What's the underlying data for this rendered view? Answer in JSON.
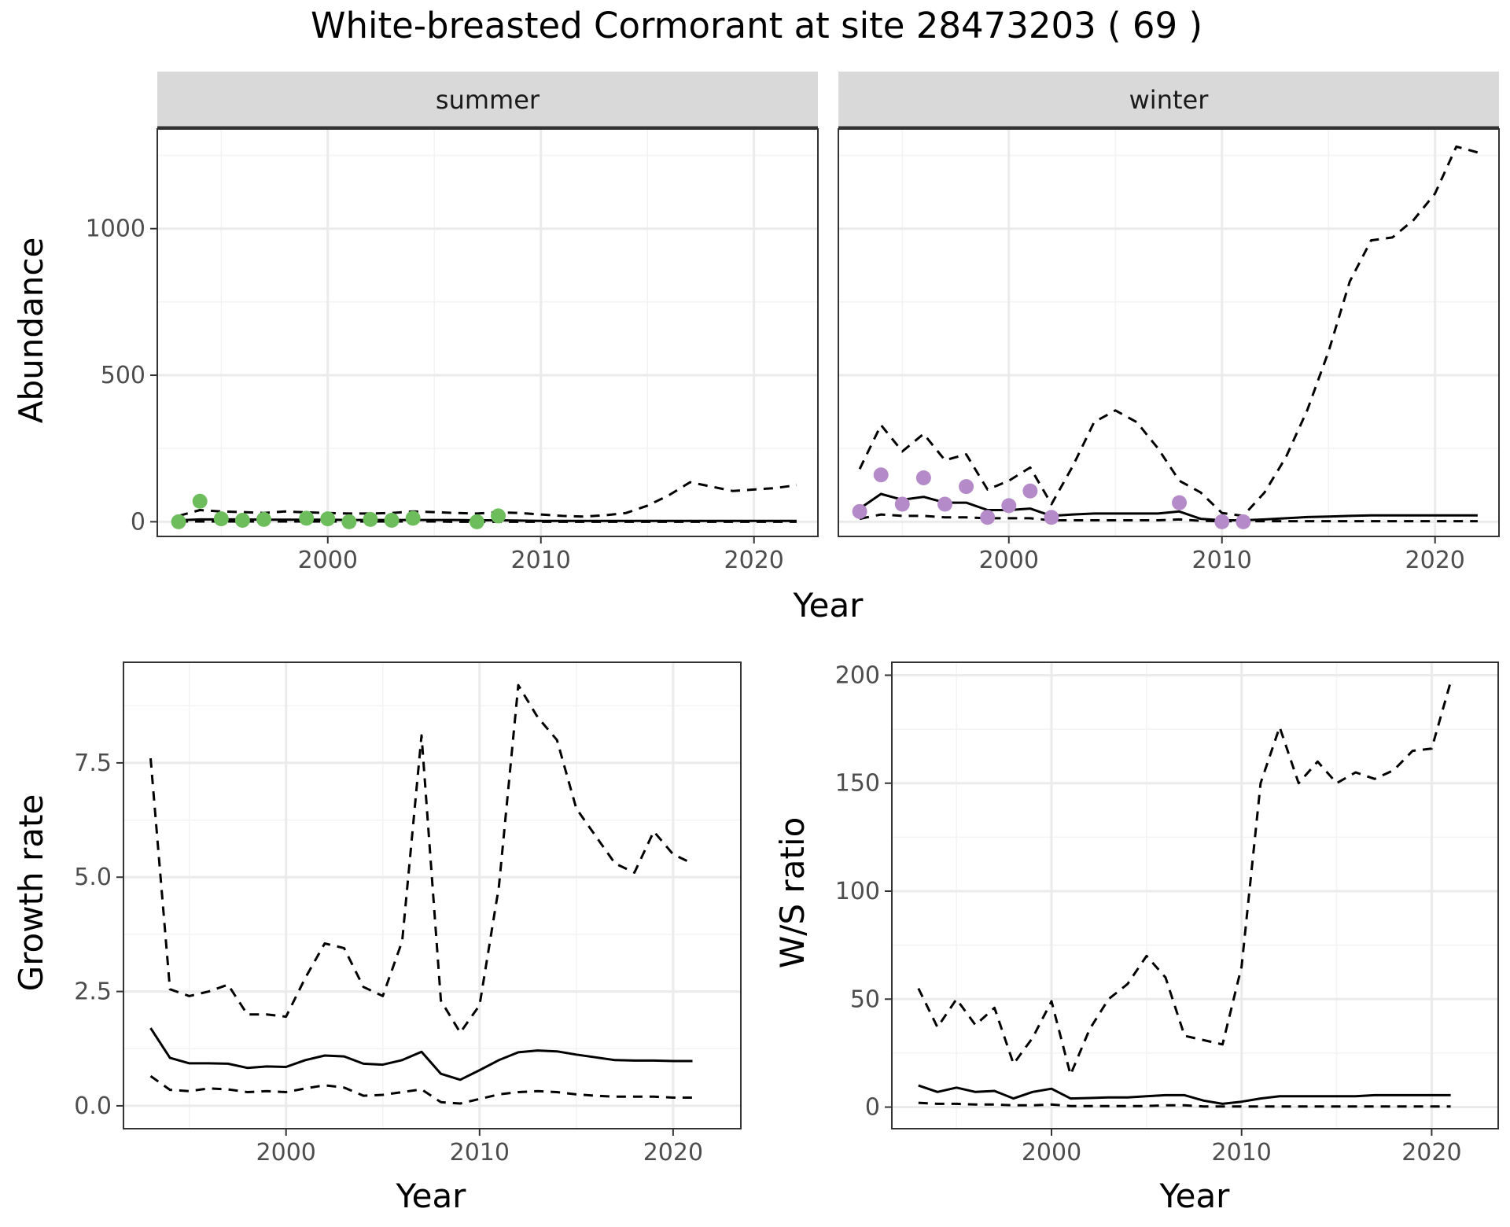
{
  "title": "White-breasted Cormorant at site 28473203 ( 69 )",
  "colors": {
    "summer_points": "#6dbd5c",
    "winter_points": "#b48bc8",
    "line": "#000000",
    "grid_major": "#ebebeb",
    "grid_minor": "#f3f3f3",
    "strip_bg": "#d9d9d9",
    "tick_text": "#4d4d4d"
  },
  "chart_data": [
    {
      "type": "line",
      "panel": "summer",
      "strip_label": "summer",
      "ylabel": "Abundance",
      "xlabel": "Year",
      "xlim": [
        1992,
        2023
      ],
      "ylim": [
        -50,
        1340
      ],
      "xticks": [
        2000,
        2010,
        2020
      ],
      "yticks": [
        0,
        500,
        1000
      ],
      "points": {
        "x": [
          1993,
          1994,
          1995,
          1996,
          1997,
          1999,
          2000,
          2001,
          2002,
          2003,
          2004,
          2007,
          2008
        ],
        "y": [
          0,
          70,
          10,
          5,
          8,
          12,
          10,
          0,
          8,
          5,
          12,
          0,
          20
        ],
        "color": "#6dbd5c"
      },
      "series": [
        {
          "style": "solid",
          "x": [
            1993,
            1994,
            1995,
            1996,
            1997,
            1998,
            1999,
            2000,
            2001,
            2002,
            2003,
            2004,
            2005,
            2006,
            2007,
            2008,
            2009,
            2010,
            2011,
            2012,
            2013,
            2014,
            2015,
            2016,
            2017,
            2018,
            2019,
            2020,
            2021,
            2022
          ],
          "y": [
            5,
            8,
            8,
            8,
            7,
            7,
            7,
            7,
            6,
            6,
            6,
            6,
            6,
            6,
            5,
            5,
            4,
            3,
            3,
            3,
            3,
            3,
            3,
            3,
            3,
            3,
            3,
            3,
            3,
            3
          ]
        },
        {
          "style": "dashed",
          "x": [
            1993,
            1994,
            1995,
            1996,
            1997,
            1998,
            1999,
            2000,
            2001,
            2002,
            2003,
            2004,
            2005,
            2006,
            2007,
            2008,
            2009,
            2010,
            2011,
            2012,
            2013,
            2014,
            2015,
            2016,
            2017,
            2018,
            2019,
            2020,
            2021,
            2022
          ],
          "y": [
            20,
            40,
            35,
            33,
            30,
            35,
            32,
            30,
            28,
            28,
            30,
            35,
            33,
            30,
            28,
            32,
            30,
            25,
            20,
            18,
            22,
            30,
            55,
            90,
            135,
            120,
            105,
            110,
            115,
            125
          ]
        },
        {
          "style": "dashed",
          "x": [
            1993,
            1994,
            1995,
            1996,
            1997,
            1998,
            1999,
            2000,
            2001,
            2002,
            2003,
            2004,
            2005,
            2006,
            2007,
            2008,
            2009,
            2010,
            2011,
            2012,
            2013,
            2014,
            2015,
            2016,
            2017,
            2018,
            2019,
            2020,
            2021,
            2022
          ],
          "y": [
            1,
            1,
            1,
            1,
            1,
            1,
            1,
            1,
            1,
            1,
            1,
            1,
            1,
            0,
            0,
            0,
            0,
            0,
            0,
            0,
            0,
            0,
            0,
            0,
            0,
            0,
            0,
            0,
            0,
            0
          ]
        }
      ]
    },
    {
      "type": "line",
      "panel": "winter",
      "strip_label": "winter",
      "ylabel": "Abundance",
      "xlabel": "Year",
      "xlim": [
        1992,
        2023
      ],
      "ylim": [
        -50,
        1340
      ],
      "xticks": [
        2000,
        2010,
        2020
      ],
      "yticks": [
        0,
        500,
        1000
      ],
      "points": {
        "x": [
          1993,
          1994,
          1995,
          1996,
          1997,
          1998,
          1999,
          2000,
          2001,
          2002,
          2008,
          2010,
          2011
        ],
        "y": [
          35,
          160,
          60,
          150,
          60,
          120,
          15,
          55,
          105,
          15,
          65,
          0,
          0
        ],
        "color": "#b48bc8"
      },
      "series": [
        {
          "style": "solid",
          "x": [
            1993,
            1994,
            1995,
            1996,
            1997,
            1998,
            1999,
            2000,
            2001,
            2002,
            2003,
            2004,
            2005,
            2006,
            2007,
            2008,
            2009,
            2010,
            2011,
            2012,
            2013,
            2014,
            2015,
            2016,
            2017,
            2018,
            2019,
            2020,
            2021,
            2022
          ],
          "y": [
            45,
            95,
            75,
            85,
            65,
            65,
            40,
            40,
            45,
            20,
            25,
            28,
            28,
            28,
            28,
            35,
            10,
            5,
            5,
            8,
            12,
            16,
            18,
            20,
            22,
            22,
            22,
            22,
            22,
            22
          ]
        },
        {
          "style": "dashed",
          "x": [
            1993,
            1994,
            1995,
            1996,
            1997,
            1998,
            1999,
            2000,
            2001,
            2002,
            2003,
            2004,
            2005,
            2006,
            2007,
            2008,
            2009,
            2010,
            2011,
            2012,
            2013,
            2014,
            2015,
            2016,
            2017,
            2018,
            2019,
            2020,
            2021,
            2022
          ],
          "y": [
            180,
            330,
            240,
            300,
            210,
            230,
            110,
            140,
            185,
            60,
            190,
            340,
            380,
            340,
            250,
            140,
            100,
            30,
            20,
            100,
            220,
            380,
            580,
            820,
            960,
            970,
            1030,
            1120,
            1280,
            1260
          ]
        },
        {
          "style": "dashed",
          "x": [
            1993,
            1994,
            1995,
            1996,
            1997,
            1998,
            1999,
            2000,
            2001,
            2002,
            2003,
            2004,
            2005,
            2006,
            2007,
            2008,
            2009,
            2010,
            2011,
            2012,
            2013,
            2014,
            2015,
            2016,
            2017,
            2018,
            2019,
            2020,
            2021,
            2022
          ],
          "y": [
            10,
            25,
            20,
            20,
            15,
            15,
            12,
            12,
            12,
            5,
            5,
            5,
            5,
            5,
            5,
            8,
            3,
            2,
            2,
            2,
            2,
            2,
            2,
            2,
            2,
            2,
            2,
            2,
            2,
            2
          ]
        }
      ]
    },
    {
      "type": "line",
      "panel": "growth",
      "ylabel": "Growth rate",
      "xlabel": "Year",
      "xlim": [
        1991.6,
        2023.5
      ],
      "ylim": [
        -0.5,
        9.7
      ],
      "xticks": [
        2000,
        2010,
        2020
      ],
      "yticks": [
        0.0,
        2.5,
        5.0,
        7.5
      ],
      "yticklabels": [
        "0.0",
        "2.5",
        "5.0",
        "7.5"
      ],
      "series": [
        {
          "style": "solid",
          "x": [
            1993,
            1994,
            1995,
            1996,
            1997,
            1998,
            1999,
            2000,
            2001,
            2002,
            2003,
            2004,
            2005,
            2006,
            2007,
            2008,
            2009,
            2010,
            2011,
            2012,
            2013,
            2014,
            2015,
            2016,
            2017,
            2018,
            2019,
            2020,
            2021
          ],
          "y": [
            1.7,
            1.05,
            0.93,
            0.93,
            0.92,
            0.83,
            0.86,
            0.85,
            1.0,
            1.1,
            1.08,
            0.92,
            0.9,
            1.0,
            1.18,
            0.7,
            0.57,
            0.78,
            1.0,
            1.17,
            1.21,
            1.19,
            1.12,
            1.06,
            1.0,
            0.99,
            0.99,
            0.98,
            0.98
          ]
        },
        {
          "style": "dashed",
          "x": [
            1993,
            1994,
            1995,
            1996,
            1997,
            1998,
            1999,
            2000,
            2001,
            2002,
            2003,
            2004,
            2005,
            2006,
            2007,
            2008,
            2009,
            2010,
            2011,
            2012,
            2013,
            2014,
            2015,
            2016,
            2017,
            2018,
            2019,
            2020,
            2021
          ],
          "y": [
            7.6,
            2.55,
            2.4,
            2.5,
            2.65,
            2.0,
            2.0,
            1.95,
            2.8,
            3.55,
            3.45,
            2.6,
            2.4,
            3.6,
            8.1,
            2.3,
            1.6,
            2.2,
            4.8,
            9.2,
            8.5,
            8.0,
            6.5,
            5.9,
            5.3,
            5.1,
            6.0,
            5.5,
            5.3
          ]
        },
        {
          "style": "dashed",
          "x": [
            1993,
            1994,
            1995,
            1996,
            1997,
            1998,
            1999,
            2000,
            2001,
            2002,
            2003,
            2004,
            2005,
            2006,
            2007,
            2008,
            2009,
            2010,
            2011,
            2012,
            2013,
            2014,
            2015,
            2016,
            2017,
            2018,
            2019,
            2020,
            2021
          ],
          "y": [
            0.65,
            0.35,
            0.32,
            0.38,
            0.36,
            0.3,
            0.32,
            0.3,
            0.38,
            0.45,
            0.4,
            0.22,
            0.24,
            0.3,
            0.36,
            0.08,
            0.05,
            0.15,
            0.25,
            0.3,
            0.32,
            0.3,
            0.25,
            0.22,
            0.2,
            0.2,
            0.2,
            0.18,
            0.18
          ]
        }
      ]
    },
    {
      "type": "line",
      "panel": "ratio",
      "ylabel": "W/S ratio",
      "xlabel": "Year",
      "xlim": [
        1991.6,
        2023.5
      ],
      "ylim": [
        -10,
        206
      ],
      "xticks": [
        2000,
        2010,
        2020
      ],
      "yticks": [
        0,
        50,
        100,
        150,
        200
      ],
      "series": [
        {
          "style": "solid",
          "x": [
            1993,
            1994,
            1995,
            1996,
            1997,
            1998,
            1999,
            2000,
            2001,
            2002,
            2003,
            2004,
            2005,
            2006,
            2007,
            2008,
            2009,
            2010,
            2011,
            2012,
            2013,
            2014,
            2015,
            2016,
            2017,
            2018,
            2019,
            2020,
            2021
          ],
          "y": [
            10,
            7,
            9,
            7,
            7.5,
            4,
            7,
            8.5,
            4,
            4.2,
            4.5,
            4.5,
            5,
            5.5,
            5.5,
            3,
            1.5,
            2.5,
            4,
            5,
            5,
            5,
            5,
            5,
            5.5,
            5.5,
            5.5,
            5.5,
            5.5
          ]
        },
        {
          "style": "dashed",
          "x": [
            1993,
            1994,
            1995,
            1996,
            1997,
            1998,
            1999,
            2000,
            2001,
            2002,
            2003,
            2004,
            2005,
            2006,
            2007,
            2008,
            2009,
            2010,
            2011,
            2012,
            2013,
            2014,
            2015,
            2016,
            2017,
            2018,
            2019,
            2020,
            2021
          ],
          "y": [
            55,
            37,
            50,
            38,
            46,
            20,
            32,
            49,
            15,
            36,
            50,
            57,
            70,
            60,
            33,
            31,
            29,
            65,
            150,
            176,
            150,
            160,
            150,
            155,
            152,
            156,
            165,
            166,
            197
          ]
        },
        {
          "style": "dashed",
          "x": [
            1993,
            1994,
            1995,
            1996,
            1997,
            1998,
            1999,
            2000,
            2001,
            2002,
            2003,
            2004,
            2005,
            2006,
            2007,
            2008,
            2009,
            2010,
            2011,
            2012,
            2013,
            2014,
            2015,
            2016,
            2017,
            2018,
            2019,
            2020,
            2021
          ],
          "y": [
            2,
            1.5,
            1.5,
            1.2,
            1.2,
            0.8,
            0.8,
            1.2,
            0.5,
            0.5,
            0.5,
            0.5,
            0.5,
            0.8,
            0.8,
            0.3,
            0.3,
            0.3,
            0.3,
            0.3,
            0.3,
            0.3,
            0.3,
            0.3,
            0.3,
            0.3,
            0.3,
            0.3,
            0.3
          ]
        }
      ]
    }
  ]
}
